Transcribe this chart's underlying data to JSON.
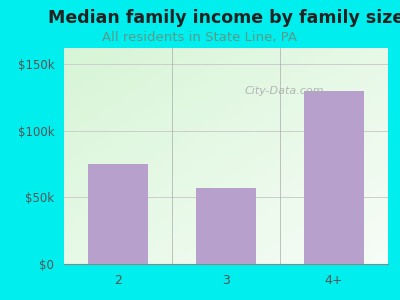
{
  "categories": [
    "2",
    "3",
    "4+"
  ],
  "values": [
    75000,
    57000,
    130000
  ],
  "bar_color": "#b8a0cc",
  "background_color": "#00eeee",
  "title": "Median family income by family size",
  "subtitle": "All residents in State Line, PA",
  "title_color": "#222222",
  "subtitle_color": "#5a9a8a",
  "title_fontsize": 12.5,
  "subtitle_fontsize": 9.5,
  "yticks": [
    0,
    50000,
    100000,
    150000
  ],
  "ytick_labels": [
    "$0",
    "$50k",
    "$100k",
    "$150k"
  ],
  "ylim": [
    0,
    162000
  ],
  "axis_color": "#555555",
  "watermark": "City-Data.com",
  "watermark_color": "#aaaaaa",
  "grid_color": "#cccccc"
}
